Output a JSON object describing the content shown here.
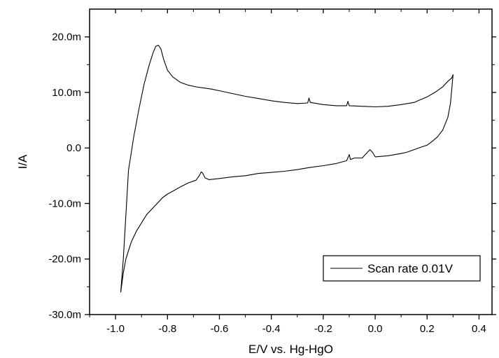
{
  "chart_data": {
    "type": "line",
    "title": "",
    "xlabel": "E/V vs. Hg-HgO",
    "ylabel": "I/A",
    "xlim": [
      -1.1,
      0.45
    ],
    "ylim": [
      -30.0,
      25.0
    ],
    "x_ticks": [
      -1.0,
      -0.8,
      -0.6,
      -0.4,
      -0.2,
      0.0,
      0.2,
      0.4
    ],
    "x_tick_labels": [
      "-1.0",
      "-0.8",
      "-0.6",
      "-0.4",
      "-0.2",
      "0.0",
      "0.2",
      "0.4"
    ],
    "y_ticks": [
      -30,
      -20,
      -10,
      0,
      10,
      20
    ],
    "y_tick_labels": [
      "-30.0m",
      "-20.0m",
      "-10.0m",
      "0.0",
      "10.0m",
      "20.0m"
    ],
    "y_unit": "mA",
    "grid": false,
    "legend_position": "bottom-right",
    "series": [
      {
        "name": "Scan rate 0.01V",
        "color": "#000000",
        "x": [
          -0.98,
          -0.97,
          -0.96,
          -0.95,
          -0.93,
          -0.91,
          -0.89,
          -0.87,
          -0.855,
          -0.845,
          -0.835,
          -0.825,
          -0.815,
          -0.8,
          -0.78,
          -0.75,
          -0.72,
          -0.69,
          -0.66,
          -0.63,
          -0.6,
          -0.55,
          -0.5,
          -0.45,
          -0.4,
          -0.35,
          -0.3,
          -0.26,
          -0.255,
          -0.25,
          -0.2,
          -0.15,
          -0.11,
          -0.105,
          -0.1,
          -0.05,
          0.0,
          0.05,
          0.1,
          0.15,
          0.17,
          0.2,
          0.23,
          0.26,
          0.28,
          0.295,
          0.3,
          0.29,
          0.28,
          0.26,
          0.24,
          0.22,
          0.2,
          0.18,
          0.15,
          0.12,
          0.1,
          0.05,
          0.0,
          -0.01,
          -0.02,
          -0.03,
          -0.05,
          -0.08,
          -0.095,
          -0.1,
          -0.11,
          -0.15,
          -0.2,
          -0.25,
          -0.3,
          -0.35,
          -0.4,
          -0.45,
          -0.5,
          -0.55,
          -0.6,
          -0.64,
          -0.655,
          -0.665,
          -0.67,
          -0.675,
          -0.69,
          -0.72,
          -0.75,
          -0.78,
          -0.8,
          -0.82,
          -0.84,
          -0.86,
          -0.88,
          -0.9,
          -0.92,
          -0.94,
          -0.95,
          -0.96,
          -0.97,
          -0.98
        ],
        "y": [
          -26.0,
          -20.0,
          -12.0,
          -4.0,
          2.0,
          7.0,
          11.5,
          15.0,
          17.2,
          18.3,
          18.5,
          17.8,
          16.0,
          14.0,
          12.8,
          11.8,
          11.3,
          11.0,
          10.8,
          10.6,
          10.3,
          9.8,
          9.3,
          8.9,
          8.5,
          8.2,
          8.0,
          8.1,
          9.0,
          8.2,
          7.8,
          7.6,
          7.6,
          8.4,
          7.6,
          7.5,
          7.4,
          7.5,
          7.8,
          8.2,
          8.6,
          9.2,
          10.0,
          11.0,
          12.0,
          12.6,
          13.2,
          8.0,
          5.5,
          3.2,
          2.0,
          1.2,
          0.5,
          0.2,
          -0.3,
          -0.8,
          -1.0,
          -1.4,
          -1.6,
          -0.8,
          -0.3,
          -0.8,
          -1.8,
          -1.8,
          -2.1,
          -1.2,
          -2.3,
          -2.8,
          -3.2,
          -3.5,
          -3.9,
          -4.2,
          -4.4,
          -4.6,
          -5.0,
          -5.2,
          -5.5,
          -5.7,
          -5.4,
          -4.5,
          -4.3,
          -4.8,
          -5.8,
          -6.3,
          -7.0,
          -7.8,
          -8.3,
          -9.0,
          -10.0,
          -11.0,
          -12.0,
          -13.5,
          -15.0,
          -17.0,
          -18.5,
          -20.0,
          -22.5,
          -26.0
        ]
      }
    ]
  }
}
